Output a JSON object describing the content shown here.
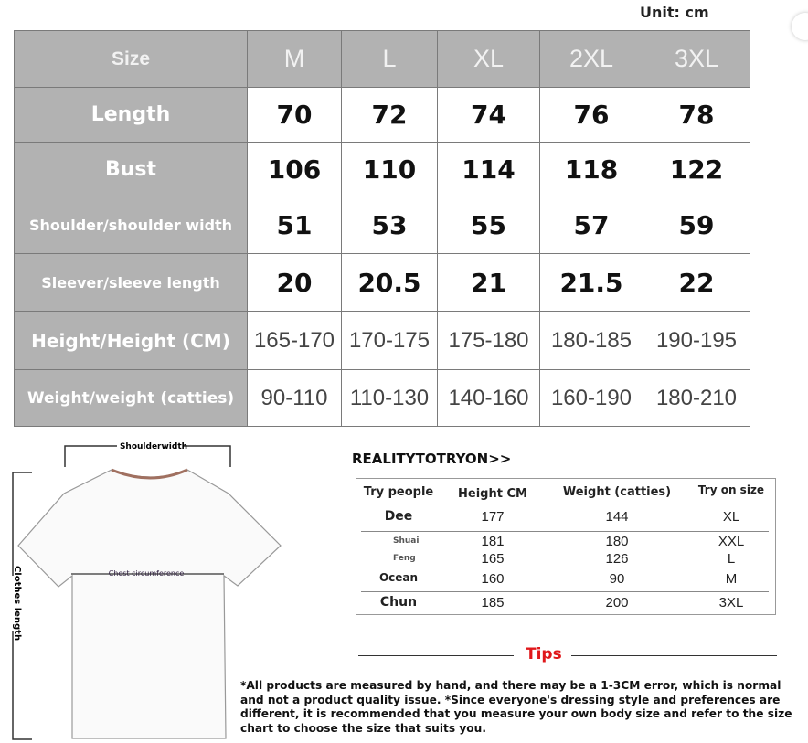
{
  "unit_label": "Unit: cm",
  "size_chart": {
    "header": [
      "Size",
      "M",
      "L",
      "XL",
      "2XL",
      "3XL"
    ],
    "rows": [
      {
        "label": "Length",
        "values": [
          "70",
          "72",
          "74",
          "76",
          "78"
        ]
      },
      {
        "label": "Bust",
        "values": [
          "106",
          "110",
          "114",
          "118",
          "122"
        ]
      },
      {
        "label": "Shoulder/shoulder width",
        "values": [
          "51",
          "53",
          "55",
          "57",
          "59"
        ]
      },
      {
        "label": "Sleever/sleeve length",
        "values": [
          "20",
          "20.5",
          "21",
          "21.5",
          "22"
        ]
      },
      {
        "label": "Height/Height (CM)",
        "values": [
          "165-170",
          "170-175",
          "175-180",
          "180-185",
          "190-195"
        ]
      },
      {
        "label": "Weight/weight (catties)",
        "values": [
          "90-110",
          "110-130",
          "140-160",
          "160-190",
          "180-210"
        ]
      }
    ]
  },
  "diagram": {
    "shoulder": "Shoulderwidth",
    "chest": "Chest circumference",
    "length": "Clothes length"
  },
  "tryon": {
    "title": "REALITYTOTRYON>>",
    "headers": [
      "Try people",
      "Height CM",
      "Weight (catties)",
      "Try on size"
    ],
    "rows": [
      {
        "name": "Dee",
        "height": "177",
        "weight": "144",
        "size": "XL"
      },
      {
        "name": "Shuai",
        "height": "181",
        "weight": "180",
        "size": "XXL"
      },
      {
        "name": "Feng",
        "height": "165",
        "weight": "126",
        "size": "L"
      },
      {
        "name": "Ocean",
        "height": "160",
        "weight": "90",
        "size": "M"
      },
      {
        "name": "Chun",
        "height": "185",
        "weight": "200",
        "size": "3XL"
      }
    ]
  },
  "tips": {
    "title": "Tips",
    "text": "*All products are measured by hand, and there may be a 1-3CM error, which is normal and not a product quality issue. *Since everyone's dressing style and preferences are different, it is recommended that you measure your own body size and refer to the size chart to choose the size that suits you."
  },
  "colors": {
    "header_gray": "#b2b2b2",
    "tips_red": "#e0181b"
  },
  "icons": {
    "floating": "visual-search-icon"
  }
}
